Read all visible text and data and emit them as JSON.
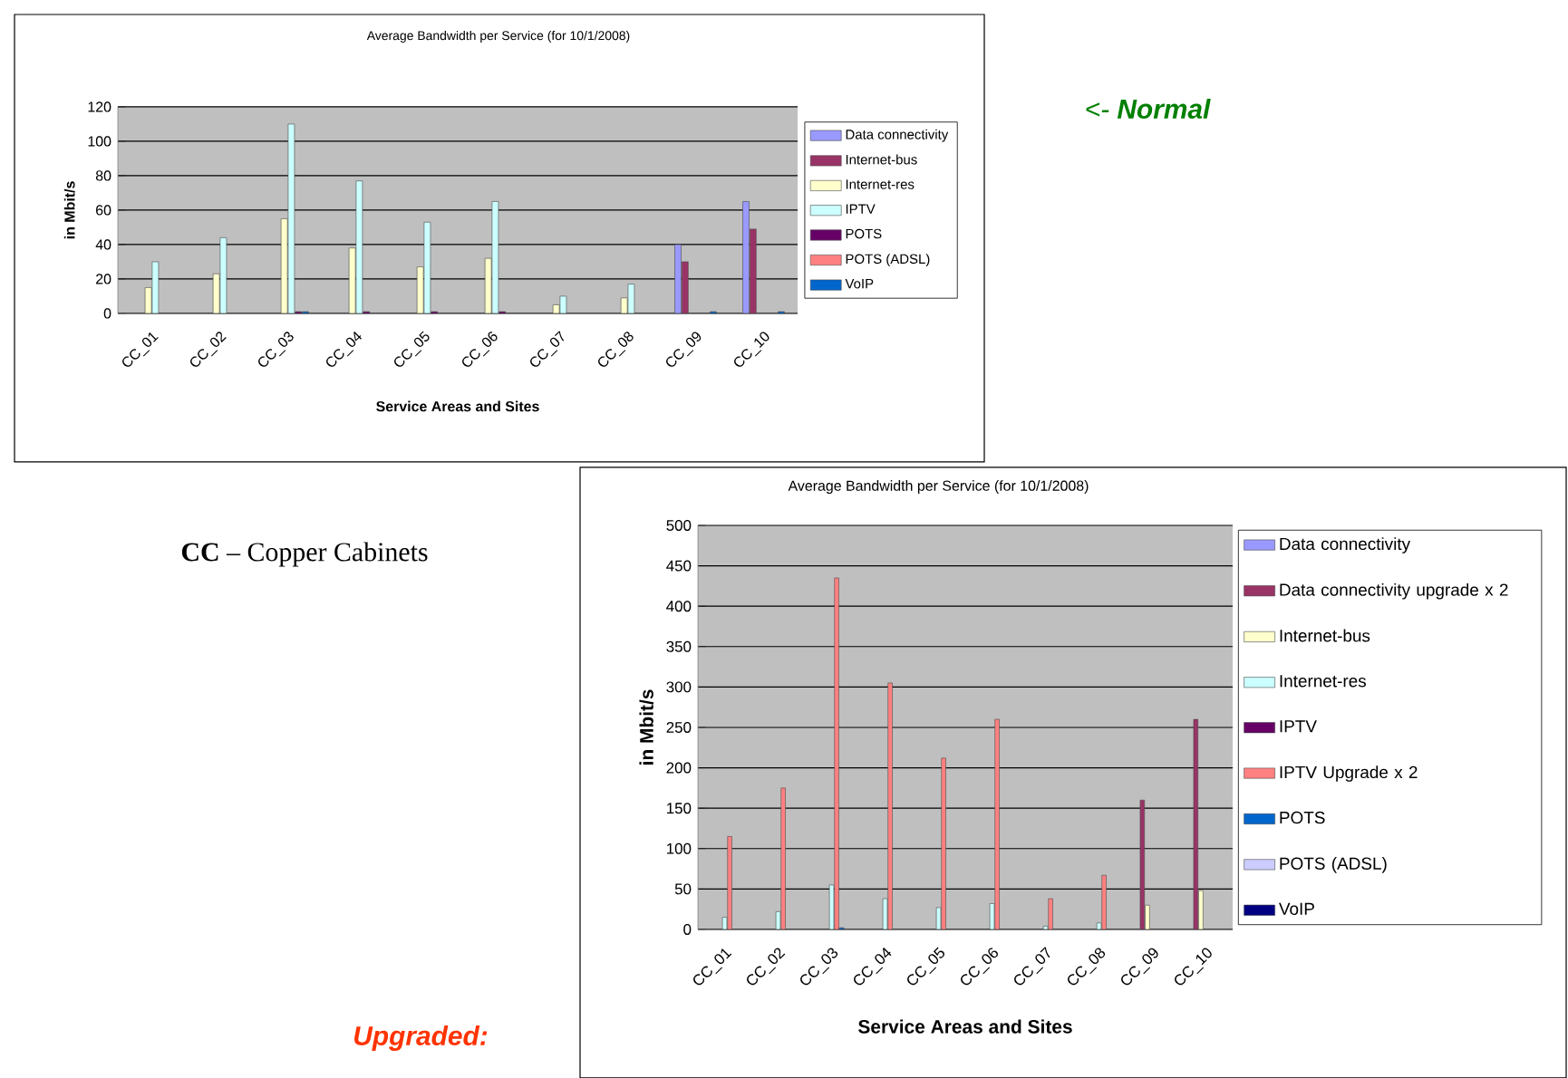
{
  "chart_data": [
    {
      "type": "bar",
      "title": "Average Bandwidth per Service (for 10/1/2008)",
      "xlabel": "Service Areas and Sites",
      "ylabel": "in Mbit/s",
      "categories": [
        "CC_01",
        "CC_02",
        "CC_03",
        "CC_04",
        "CC_05",
        "CC_06",
        "CC_07",
        "CC_08",
        "CC_09",
        "CC_10"
      ],
      "series": [
        {
          "name": "Data connectivity",
          "color": "#9999ff",
          "values": [
            null,
            null,
            null,
            null,
            null,
            null,
            null,
            null,
            40,
            65
          ]
        },
        {
          "name": "Internet-bus",
          "color": "#993366",
          "values": [
            null,
            null,
            null,
            null,
            null,
            null,
            null,
            null,
            30,
            49
          ]
        },
        {
          "name": "Internet-res",
          "color": "#ffffcc",
          "values": [
            15,
            23,
            55,
            38,
            27,
            32,
            5,
            9,
            null,
            null
          ]
        },
        {
          "name": "IPTV",
          "color": "#ccffff",
          "values": [
            30,
            44,
            110,
            77,
            53,
            65,
            10,
            17,
            null,
            null
          ]
        },
        {
          "name": "POTS",
          "color": "#660066",
          "values": [
            null,
            null,
            1,
            1,
            1,
            1,
            null,
            null,
            null,
            null
          ]
        },
        {
          "name": "POTS (ADSL)",
          "color": "#ff8080",
          "values": [
            null,
            null,
            null,
            null,
            null,
            null,
            null,
            null,
            null,
            null
          ]
        },
        {
          "name": "VoIP",
          "color": "#0066cc",
          "values": [
            null,
            null,
            1,
            null,
            null,
            null,
            null,
            null,
            1,
            1
          ]
        }
      ],
      "ylim": [
        0,
        120
      ],
      "yticks": [
        0,
        20,
        40,
        60,
        80,
        100,
        120
      ],
      "grid": "y",
      "legend": "right",
      "annotations": [
        "<- **Normal**"
      ]
    },
    {
      "type": "bar",
      "title": "Average Bandwidth per Service (for 10/1/2008)",
      "xlabel": "Service Areas and Sites",
      "ylabel": "in Mbit/s",
      "categories": [
        "CC_01",
        "CC_02",
        "CC_03",
        "CC_04",
        "CC_05",
        "CC_06",
        "CC_07",
        "CC_08",
        "CC_09",
        "CC_10"
      ],
      "series": [
        {
          "name": "Data connectivity",
          "color": "#9999ff",
          "values": [
            null,
            null,
            null,
            null,
            null,
            null,
            null,
            null,
            null,
            null
          ]
        },
        {
          "name": "Data connectivity upgrade x 2",
          "color": "#993366",
          "values": [
            null,
            null,
            null,
            null,
            null,
            null,
            null,
            null,
            160,
            260
          ]
        },
        {
          "name": "Internet-bus",
          "color": "#ffffcc",
          "values": [
            null,
            null,
            null,
            null,
            null,
            null,
            null,
            null,
            30,
            48
          ]
        },
        {
          "name": "Internet-res",
          "color": "#ccffff",
          "values": [
            15,
            22,
            55,
            38,
            27,
            32,
            4,
            8,
            null,
            null
          ]
        },
        {
          "name": "IPTV",
          "color": "#660066",
          "values": [
            null,
            null,
            null,
            null,
            null,
            null,
            null,
            null,
            null,
            null
          ]
        },
        {
          "name": "IPTV Upgrade x 2",
          "color": "#ff8080",
          "values": [
            115,
            175,
            435,
            305,
            212,
            260,
            38,
            67,
            null,
            null
          ]
        },
        {
          "name": "POTS",
          "color": "#0066cc",
          "values": [
            null,
            null,
            2,
            null,
            null,
            null,
            null,
            null,
            null,
            null
          ]
        },
        {
          "name": "POTS (ADSL)",
          "color": "#ccccff",
          "values": [
            null,
            null,
            null,
            null,
            null,
            null,
            null,
            null,
            null,
            null
          ]
        },
        {
          "name": "VoIP",
          "color": "#000080",
          "values": [
            null,
            null,
            null,
            null,
            null,
            null,
            null,
            null,
            null,
            null
          ]
        }
      ],
      "ylim": [
        0,
        500
      ],
      "yticks": [
        0,
        50,
        100,
        150,
        200,
        250,
        300,
        350,
        400,
        450,
        500
      ],
      "grid": "y",
      "legend": "right",
      "annotations": [
        "**CC** – Copper Cabinets",
        "**Upgraded:**"
      ]
    }
  ]
}
